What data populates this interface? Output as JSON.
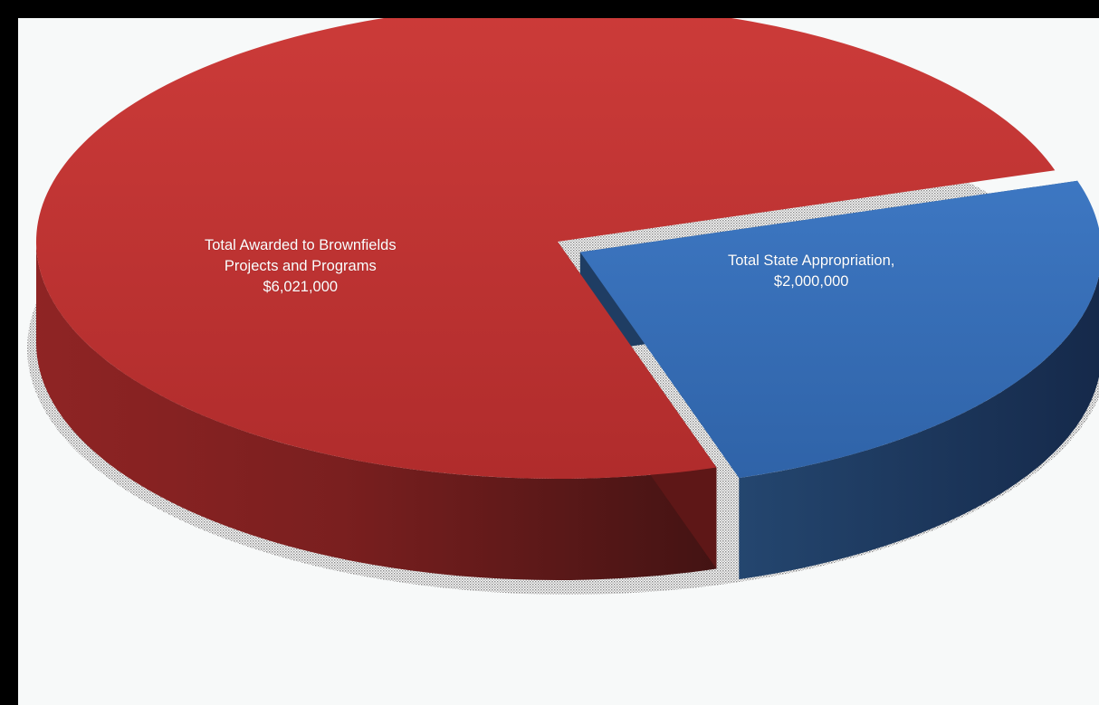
{
  "chart_data": {
    "type": "pie",
    "title": "",
    "slices": [
      {
        "name": "Total Awarded to Brownfields Projects and Programs",
        "value": 6021000,
        "label": "Total Awarded to Brownfields\nProjects and Programs\n$6,021,000",
        "color": "#c03232"
      },
      {
        "name": "Total State Appropriation",
        "value": 2000000,
        "label": "Total State  Appropriation,\n$2,000,000",
        "color": "#3a6fb5"
      }
    ],
    "legend": "none",
    "style": "3d-exploded"
  }
}
